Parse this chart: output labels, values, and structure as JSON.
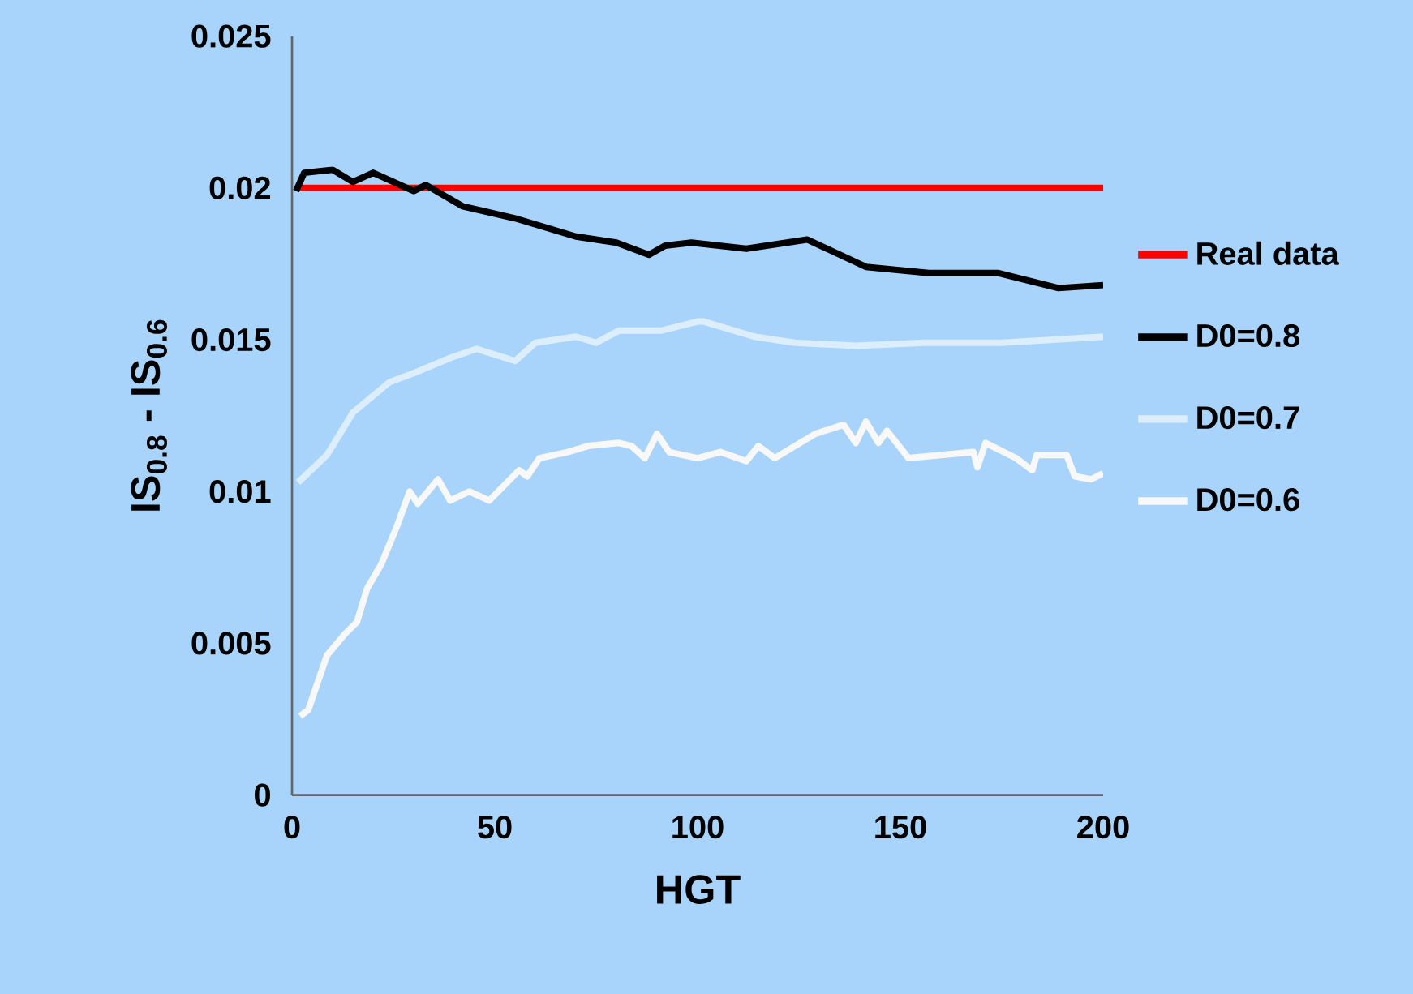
{
  "chart_data": {
    "type": "line",
    "xlabel": "HGT",
    "ylabel": "IS$_{0.8}$ - IS$_{0.6}$",
    "xlim": [
      0,
      200
    ],
    "xticks": [
      0,
      50,
      100,
      150,
      200
    ],
    "ylim": [
      0,
      0.025
    ],
    "yticks": [
      0,
      0.005,
      0.01,
      0.015,
      0.02,
      0.025
    ],
    "grid": false,
    "legend": "right",
    "marker": "none",
    "line_style": "solid",
    "series": [
      {
        "name": "Real data",
        "color": "#ff0000",
        "x": [
          1,
          200
        ],
        "values": [
          0.02,
          0.02
        ]
      },
      {
        "name": "D0=0.8",
        "color": "#000000",
        "x": [
          1,
          3,
          10,
          15,
          20,
          30,
          33,
          42,
          55,
          60,
          70,
          80,
          88,
          92,
          98.5,
          112,
          127,
          141.5,
          157,
          174,
          189,
          200
        ],
        "values": [
          0.0199,
          0.0205,
          0.0206,
          0.0202,
          0.0205,
          0.0199,
          0.0201,
          0.0194,
          0.019,
          0.0188,
          0.0184,
          0.0182,
          0.0178,
          0.0181,
          0.0182,
          0.018,
          0.0183,
          0.0174,
          0.0172,
          0.0172,
          0.0167,
          0.0168
        ]
      },
      {
        "name": "D0=0.7",
        "color": "#dceefb",
        "x": [
          1.5,
          8.6,
          15,
          24,
          30,
          39,
          45.5,
          55,
          60,
          70,
          75,
          80.6,
          91,
          100,
          101.5,
          114,
          124,
          139,
          156,
          175,
          200
        ],
        "values": [
          0.0103,
          0.0112,
          0.0126,
          0.0136,
          0.0139,
          0.0144,
          0.0147,
          0.0143,
          0.0149,
          0.0151,
          0.0149,
          0.0153,
          0.0153,
          0.0156,
          0.0156,
          0.0151,
          0.0149,
          0.0148,
          0.0149,
          0.0149,
          0.0151
        ]
      },
      {
        "name": "D0=0.6",
        "color": "#f8f8f8",
        "x": [
          2,
          4,
          8.6,
          13,
          16,
          18.5,
          22,
          26,
          29,
          31,
          36,
          39,
          43.7,
          48.6,
          56,
          58,
          61,
          68,
          73,
          80.6,
          83.7,
          87,
          90,
          93,
          100,
          105.6,
          112,
          115,
          119,
          129,
          136,
          139,
          141.5,
          144.6,
          146.7,
          152,
          168,
          169,
          171,
          178.5,
          182.5,
          183.6,
          191,
          193,
          197,
          200
        ],
        "values": [
          0.0026,
          0.0028,
          0.0046,
          0.0053,
          0.0057,
          0.0068,
          0.0076,
          0.0089,
          0.01,
          0.0096,
          0.0104,
          0.0097,
          0.01,
          0.0097,
          0.0107,
          0.0105,
          0.0111,
          0.0113,
          0.0115,
          0.0116,
          0.0115,
          0.0111,
          0.0119,
          0.0113,
          0.0111,
          0.0113,
          0.011,
          0.0115,
          0.0111,
          0.0119,
          0.0122,
          0.0116,
          0.0123,
          0.0116,
          0.012,
          0.0111,
          0.0113,
          0.0108,
          0.0116,
          0.0111,
          0.0107,
          0.0112,
          0.0112,
          0.0105,
          0.0104,
          0.0106
        ]
      }
    ]
  }
}
